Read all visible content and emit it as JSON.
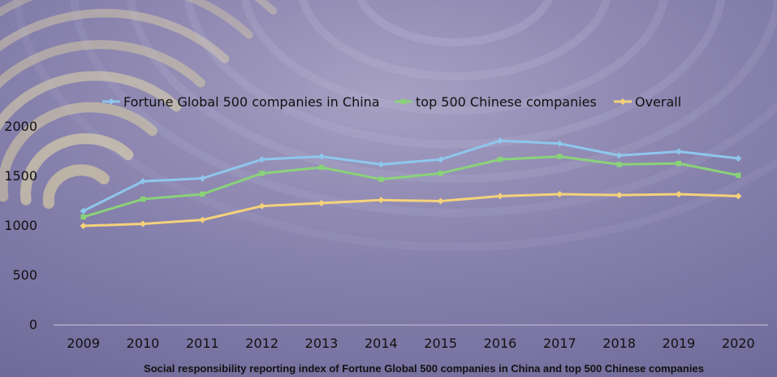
{
  "chart_data": {
    "type": "line",
    "categories": [
      "2009",
      "2010",
      "2011",
      "2012",
      "2013",
      "2014",
      "2015",
      "2016",
      "2017",
      "2018",
      "2019",
      "2020"
    ],
    "series": [
      {
        "name": "Fortune Global 500 companies in China",
        "color": "#8fc6ec",
        "marker": "diamond",
        "values": [
          1150,
          1450,
          1480,
          1670,
          1700,
          1620,
          1670,
          1860,
          1830,
          1710,
          1750,
          1680
        ]
      },
      {
        "name": "top 500 Chinese companies",
        "color": "#8ad27a",
        "marker": "square",
        "values": [
          1090,
          1270,
          1320,
          1530,
          1590,
          1470,
          1530,
          1670,
          1700,
          1620,
          1630,
          1510
        ]
      },
      {
        "name": "Overall",
        "color": "#f5d27a",
        "marker": "diamond",
        "values": [
          1000,
          1020,
          1060,
          1200,
          1230,
          1260,
          1250,
          1300,
          1320,
          1310,
          1320,
          1300
        ]
      }
    ],
    "title": "",
    "caption": "Social responsibility reporting index of Fortune Global 500 companies in China and top 500 Chinese companies",
    "xlabel": "",
    "ylabel": "",
    "ylim": [
      0,
      2000
    ],
    "yticks": [
      0,
      500,
      1000,
      1500,
      2000
    ],
    "grid": false,
    "legend_position": "top"
  }
}
